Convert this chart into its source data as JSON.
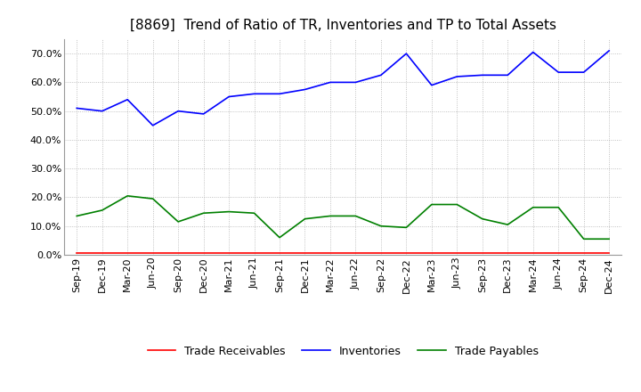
{
  "title": "[8869]  Trend of Ratio of TR, Inventories and TP to Total Assets",
  "x_labels": [
    "Sep-19",
    "Dec-19",
    "Mar-20",
    "Jun-20",
    "Sep-20",
    "Dec-20",
    "Mar-21",
    "Jun-21",
    "Sep-21",
    "Dec-21",
    "Mar-22",
    "Jun-22",
    "Sep-22",
    "Dec-22",
    "Mar-23",
    "Jun-23",
    "Sep-23",
    "Dec-23",
    "Mar-24",
    "Jun-24",
    "Sep-24",
    "Dec-24"
  ],
  "trade_receivables": [
    0.005,
    0.005,
    0.005,
    0.005,
    0.005,
    0.005,
    0.005,
    0.005,
    0.005,
    0.005,
    0.005,
    0.005,
    0.005,
    0.005,
    0.005,
    0.005,
    0.005,
    0.005,
    0.005,
    0.005,
    0.005,
    0.005
  ],
  "inventories": [
    0.51,
    0.5,
    0.54,
    0.45,
    0.5,
    0.49,
    0.55,
    0.56,
    0.56,
    0.575,
    0.6,
    0.6,
    0.625,
    0.7,
    0.59,
    0.62,
    0.625,
    0.625,
    0.705,
    0.635,
    0.635,
    0.71
  ],
  "trade_payables": [
    0.135,
    0.155,
    0.205,
    0.195,
    0.115,
    0.145,
    0.15,
    0.145,
    0.06,
    0.125,
    0.135,
    0.135,
    0.1,
    0.095,
    0.175,
    0.175,
    0.125,
    0.105,
    0.165,
    0.165,
    0.055,
    0.055
  ],
  "tr_color": "#ff0000",
  "inv_color": "#0000ff",
  "tp_color": "#008000",
  "ylim": [
    0.0,
    0.75
  ],
  "yticks": [
    0.0,
    0.1,
    0.2,
    0.3,
    0.4,
    0.5,
    0.6,
    0.7
  ],
  "background_color": "#ffffff",
  "grid_color": "#b0b0b0",
  "title_fontsize": 11,
  "legend_fontsize": 9,
  "tick_fontsize": 8
}
